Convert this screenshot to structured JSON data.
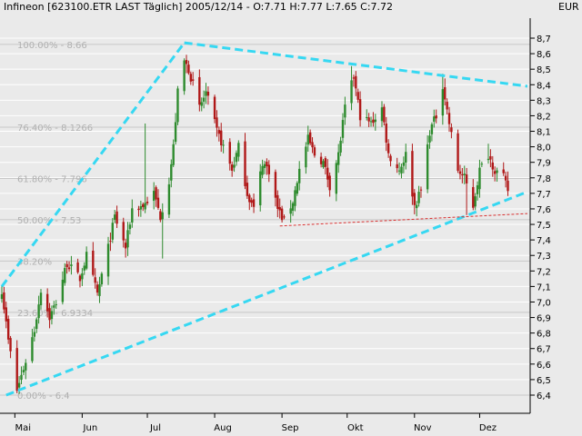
{
  "header": {
    "title": "Infineon [623100.ETR LAST Täglich] 2005/12/14 - O:7.71 H:7.77 L:7.65 C:7.72",
    "currency": "EUR"
  },
  "colors": {
    "background": "#eaeaea",
    "grid": "#ffffff",
    "fib": "#c8c8c8",
    "up": "#2e8b2e",
    "down": "#b01818",
    "trend": "#36d8f2",
    "support": "#d83030",
    "text": "#000000"
  },
  "chart_data": {
    "type": "candlestick",
    "ylim": [
      6.35,
      8.75
    ],
    "y_ticks": [
      "8,7",
      "8,6",
      "8,5",
      "8,4",
      "8,3",
      "8,2",
      "8,1",
      "8,0",
      "7,9",
      "7,8",
      "7,7",
      "7,6",
      "7,5",
      "7,4",
      "7,3",
      "7,2",
      "7,1",
      "7,0",
      "6,9",
      "6,8",
      "6,7",
      "6,6",
      "6,5",
      "6,4"
    ],
    "y_tick_values": [
      8.7,
      8.6,
      8.5,
      8.4,
      8.3,
      8.2,
      8.1,
      8.0,
      7.9,
      7.8,
      7.7,
      7.6,
      7.5,
      7.4,
      7.3,
      7.2,
      7.1,
      7.0,
      6.9,
      6.8,
      6.7,
      6.6,
      6.5,
      6.4
    ],
    "x_range": [
      "2005-04-25",
      "2005-12-23"
    ],
    "month_labels": [
      {
        "label": "Mai",
        "date": "2005-05-01"
      },
      {
        "label": "Jun",
        "date": "2005-06-01"
      },
      {
        "label": "Jul",
        "date": "2005-07-01"
      },
      {
        "label": "Aug",
        "date": "2005-08-01"
      },
      {
        "label": "Sep",
        "date": "2005-09-01"
      },
      {
        "label": "Okt",
        "date": "2005-10-01"
      },
      {
        "label": "Nov",
        "date": "2005-11-01"
      },
      {
        "label": "Dez",
        "date": "2005-12-01"
      }
    ],
    "fib_levels": [
      {
        "label": "100.00% - 8.66",
        "value": 8.66
      },
      {
        "label": "76.40% - 8.1266",
        "value": 8.1266
      },
      {
        "label": "61.80% - 7.796",
        "value": 7.796
      },
      {
        "label": "50.00% - 7.53",
        "value": 7.53
      },
      {
        "label": "38.20%",
        "value": 7.264
      },
      {
        "label": "23.60% - 6.9334",
        "value": 6.9334
      },
      {
        "label": "0.00% - 6.4",
        "value": 6.4
      }
    ],
    "trend_lines": [
      {
        "from": [
          "2005-04-25",
          7.1
        ],
        "to": [
          "2005-07-18",
          8.67
        ]
      },
      {
        "from": [
          "2005-07-18",
          8.67
        ],
        "to": [
          "2005-12-23",
          8.39
        ]
      },
      {
        "from": [
          "2005-04-27",
          6.4
        ],
        "to": [
          "2005-12-23",
          7.71
        ]
      }
    ],
    "support_line": {
      "from": [
        "2005-08-31",
        7.49
      ],
      "to": [
        "2005-12-23",
        7.57
      ]
    },
    "anchors": [
      [
        "2005-04-25",
        7.08
      ],
      [
        "2005-04-28",
        6.75
      ],
      [
        "2005-05-02",
        6.43
      ],
      [
        "2005-05-06",
        6.62
      ],
      [
        "2005-05-10",
        6.82
      ],
      [
        "2005-05-13",
        7.08
      ],
      [
        "2005-05-17",
        6.9
      ],
      [
        "2005-05-20",
        7.0
      ],
      [
        "2005-05-25",
        7.25
      ],
      [
        "2005-05-31",
        7.15
      ],
      [
        "2005-06-03",
        7.3
      ],
      [
        "2005-06-08",
        7.05
      ],
      [
        "2005-06-13",
        7.35
      ],
      [
        "2005-06-16",
        7.55
      ],
      [
        "2005-06-21",
        7.35
      ],
      [
        "2005-06-24",
        7.6
      ],
      [
        "2005-06-29",
        7.62
      ],
      [
        "2005-07-04",
        7.7
      ],
      [
        "2005-07-07",
        7.55
      ],
      [
        "2005-07-11",
        7.78
      ],
      [
        "2005-07-13",
        8.0
      ],
      [
        "2005-07-15",
        8.35
      ],
      [
        "2005-07-18",
        8.55
      ],
      [
        "2005-07-20",
        8.5
      ],
      [
        "2005-07-25",
        8.25
      ],
      [
        "2005-07-28",
        8.35
      ],
      [
        "2005-08-02",
        8.1
      ],
      [
        "2005-08-05",
        8.0
      ],
      [
        "2005-08-09",
        7.85
      ],
      [
        "2005-08-12",
        8.0
      ],
      [
        "2005-08-16",
        7.7
      ],
      [
        "2005-08-19",
        7.6
      ],
      [
        "2005-08-23",
        7.9
      ],
      [
        "2005-08-26",
        7.85
      ],
      [
        "2005-08-30",
        7.6
      ],
      [
        "2005-09-02",
        7.52
      ],
      [
        "2005-09-06",
        7.65
      ],
      [
        "2005-09-09",
        7.85
      ],
      [
        "2005-09-13",
        8.05
      ],
      [
        "2005-09-16",
        7.95
      ],
      [
        "2005-09-20",
        7.9
      ],
      [
        "2005-09-23",
        7.75
      ],
      [
        "2005-09-27",
        7.95
      ],
      [
        "2005-09-30",
        8.25
      ],
      [
        "2005-10-04",
        8.45
      ],
      [
        "2005-10-07",
        8.2
      ],
      [
        "2005-10-12",
        8.15
      ],
      [
        "2005-10-17",
        8.25
      ],
      [
        "2005-10-20",
        7.95
      ],
      [
        "2005-10-25",
        7.85
      ],
      [
        "2005-10-28",
        7.95
      ],
      [
        "2005-11-01",
        7.62
      ],
      [
        "2005-11-04",
        7.72
      ],
      [
        "2005-11-08",
        8.1
      ],
      [
        "2005-11-11",
        8.2
      ],
      [
        "2005-11-14",
        8.4
      ],
      [
        "2005-11-17",
        8.15
      ],
      [
        "2005-11-21",
        7.85
      ],
      [
        "2005-11-24",
        7.8
      ],
      [
        "2005-11-28",
        7.62
      ],
      [
        "2005-12-01",
        7.85
      ],
      [
        "2005-12-05",
        7.95
      ],
      [
        "2005-12-08",
        7.85
      ],
      [
        "2005-12-12",
        7.8
      ],
      [
        "2005-12-14",
        7.72
      ]
    ],
    "spikes": [
      {
        "date": "2005-06-30",
        "high": 8.15
      },
      {
        "date": "2005-07-08",
        "low": 7.28
      },
      {
        "date": "2005-10-03",
        "high": 8.52
      },
      {
        "date": "2005-11-14",
        "high": 8.47
      },
      {
        "date": "2005-11-25",
        "low": 7.56
      },
      {
        "date": "2005-12-05",
        "high": 8.02
      }
    ]
  }
}
